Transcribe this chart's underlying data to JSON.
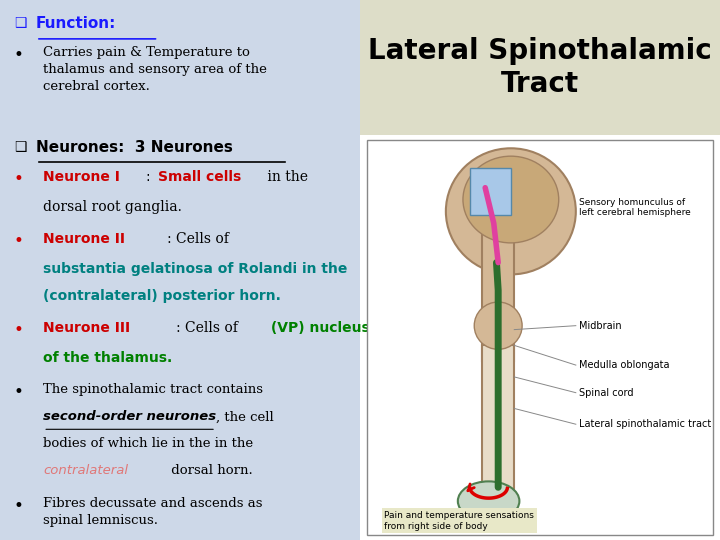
{
  "bg_color_left": "#cdd8e8",
  "bg_color_right": "#e8e8d8",
  "title": "Lateral Spinothalamic\nTract",
  "title_fontsize": 20,
  "title_color": "#000000",
  "left_panel": {
    "lines": [
      {
        "type": "checkbox_header",
        "checkbox_color": "#1a1aff",
        "text": "Function:",
        "text_color": "#1a1aff",
        "underline": true,
        "bold": true,
        "fontsize": 11
      },
      {
        "type": "bullet",
        "segments": [
          {
            "text": "Carries pain & Temperature to thalamus and sensory area of the cerebral cortex.",
            "color": "#000000",
            "bold": false,
            "italic": false,
            "underline": false
          }
        ],
        "fontsize": 10
      },
      {
        "type": "checkbox_header",
        "checkbox_color": "#000000",
        "text": "Neurones:  3 Neurones",
        "text_color": "#000000",
        "underline": true,
        "bold": true,
        "fontsize": 11
      },
      {
        "type": "bullet",
        "segments": [
          {
            "text": "Neurone I",
            "color": "#cc0000",
            "bold": true,
            "italic": false,
            "underline": false
          },
          {
            "text": ":  ",
            "color": "#000000",
            "bold": false,
            "italic": false,
            "underline": false
          },
          {
            "text": "Small cells",
            "color": "#cc0000",
            "bold": true,
            "italic": false,
            "underline": false
          },
          {
            "text": " in the dorsal root ganglia.",
            "color": "#000000",
            "bold": false,
            "italic": false,
            "underline": false
          }
        ],
        "fontsize": 10
      },
      {
        "type": "bullet",
        "segments": [
          {
            "text": "Neurone II",
            "color": "#cc0000",
            "bold": true,
            "italic": false,
            "underline": false
          },
          {
            "text": ": Cells of ",
            "color": "#000000",
            "bold": false,
            "italic": false,
            "underline": false
          },
          {
            "text": "substantia gelatinosa of Rolandi in the (contralateral) posterior horn.",
            "color": "#008080",
            "bold": true,
            "italic": false,
            "underline": false
          }
        ],
        "fontsize": 10
      },
      {
        "type": "bullet",
        "segments": [
          {
            "text": "Neurone III",
            "color": "#cc0000",
            "bold": true,
            "italic": false,
            "underline": false
          },
          {
            "text": ": Cells of ",
            "color": "#000000",
            "bold": false,
            "italic": false,
            "underline": false
          },
          {
            "text": "(VP) nucleus of the thalamus.",
            "color": "#008000",
            "bold": true,
            "italic": false,
            "underline": false
          }
        ],
        "fontsize": 10
      },
      {
        "type": "bullet",
        "segments": [
          {
            "text": "The spinothalamic tract contains ",
            "color": "#000000",
            "bold": false,
            "italic": false,
            "underline": false
          },
          {
            "text": "second-order neurones",
            "color": "#000000",
            "bold": true,
            "italic": true,
            "underline": true
          },
          {
            "text": ", the cell bodies of which lie in the in the ",
            "color": "#000000",
            "bold": false,
            "italic": false,
            "underline": false
          },
          {
            "text": "contralateral",
            "color": "#e07070",
            "bold": false,
            "italic": true,
            "underline": false
          },
          {
            "text": " dorsal horn.",
            "color": "#000000",
            "bold": false,
            "italic": false,
            "underline": false
          }
        ],
        "fontsize": 10
      },
      {
        "type": "bullet",
        "segments": [
          {
            "text": "Fibres decussate and ascends as spinal lemniscus.",
            "color": "#000000",
            "bold": false,
            "italic": false,
            "underline": false
          }
        ],
        "fontsize": 10
      }
    ]
  }
}
